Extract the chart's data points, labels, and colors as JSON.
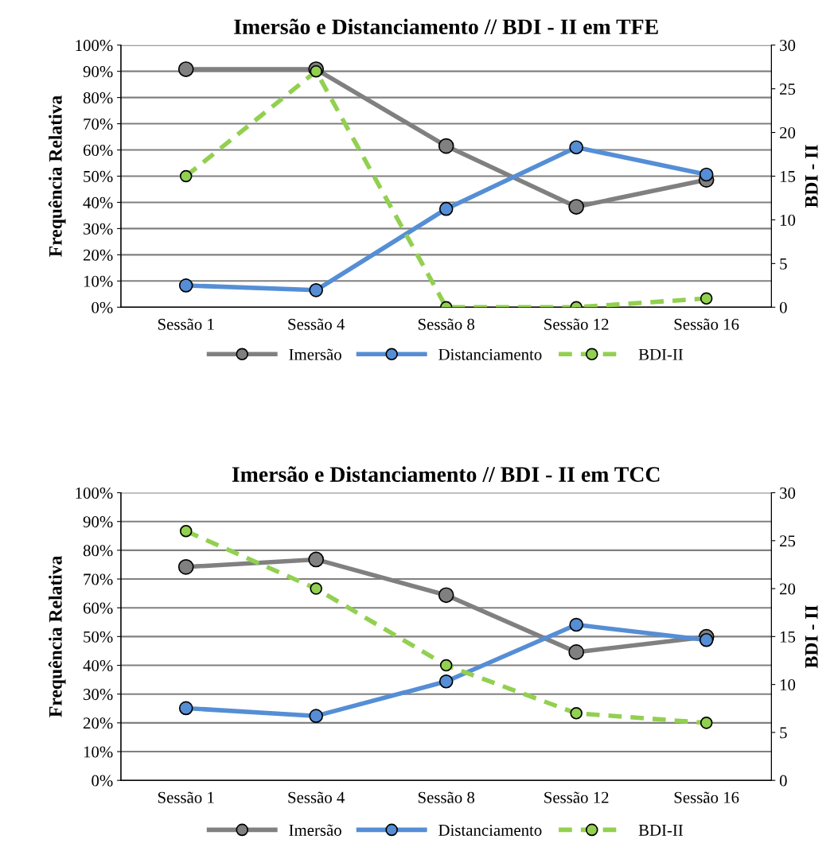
{
  "chart_data": [
    {
      "type": "line",
      "title": "Imersão e Distanciamento // BDI - II em TFE",
      "ylabel": "Frequência Relativa",
      "y2label": "BDI - II",
      "categories": [
        "Sessão 1",
        "Sessão 4",
        "Sessão 8",
        "Sessão 12",
        "Sessão 16"
      ],
      "series": [
        {
          "name": "Imersão",
          "color": "#808080",
          "values": [
            0.908,
            0.908,
            0.615,
            0.383,
            0.486
          ]
        },
        {
          "name": "Distanciamento",
          "color": "#558ed5",
          "values": [
            0.083,
            0.065,
            0.375,
            0.61,
            0.506
          ]
        },
        {
          "name": "BDI-II",
          "color": "#92d050",
          "values": [
            15,
            27,
            0,
            0,
            1
          ],
          "axis": "y2",
          "line_style": "dashed"
        }
      ],
      "ylim": [
        0,
        1
      ],
      "yticks": [
        {
          "value": 0,
          "label": "0%"
        },
        {
          "value": 0.1,
          "label": "10%"
        },
        {
          "value": 0.2,
          "label": "20%"
        },
        {
          "value": 0.3,
          "label": "30%"
        },
        {
          "value": 0.4,
          "label": "40%"
        },
        {
          "value": 0.5,
          "label": "50%"
        },
        {
          "value": 0.6,
          "label": "60%"
        },
        {
          "value": 0.7,
          "label": "70%"
        },
        {
          "value": 0.8,
          "label": "80%"
        },
        {
          "value": 0.9,
          "label": "90%"
        },
        {
          "value": 1,
          "label": "100%"
        }
      ],
      "y2lim": [
        0,
        30
      ],
      "y2ticks": [
        0,
        5,
        10,
        15,
        20,
        25,
        30
      ],
      "grid": "y",
      "legend": "bottom",
      "marker": "circle",
      "line_style": "solid"
    },
    {
      "type": "line",
      "title": "Imersão e Distanciamento // BDI - II em TCC",
      "ylabel": "Frequência Relativa",
      "y2label": "BDI - II",
      "categories": [
        "Sessão 1",
        "Sessão 4",
        "Sessão 8",
        "Sessão 12",
        "Sessão 16"
      ],
      "series": [
        {
          "name": "Imersão",
          "color": "#808080",
          "values": [
            0.742,
            0.768,
            0.644,
            0.446,
            0.499
          ]
        },
        {
          "name": "Distanciamento",
          "color": "#558ed5",
          "values": [
            0.251,
            0.224,
            0.344,
            0.541,
            0.488
          ]
        },
        {
          "name": "BDI-II",
          "color": "#92d050",
          "values": [
            26,
            20,
            12,
            7,
            6
          ],
          "axis": "y2",
          "line_style": "dashed"
        }
      ],
      "ylim": [
        0,
        1
      ],
      "yticks": [
        {
          "value": 0,
          "label": "0%"
        },
        {
          "value": 0.1,
          "label": "10%"
        },
        {
          "value": 0.2,
          "label": "20%"
        },
        {
          "value": 0.3,
          "label": "30%"
        },
        {
          "value": 0.4,
          "label": "40%"
        },
        {
          "value": 0.5,
          "label": "50%"
        },
        {
          "value": 0.6,
          "label": "60%"
        },
        {
          "value": 0.7,
          "label": "70%"
        },
        {
          "value": 0.8,
          "label": "80%"
        },
        {
          "value": 0.9,
          "label": "90%"
        },
        {
          "value": 1,
          "label": "100%"
        }
      ],
      "y2lim": [
        0,
        30
      ],
      "y2ticks": [
        0,
        5,
        10,
        15,
        20,
        25,
        30
      ],
      "grid": "y",
      "legend": "bottom",
      "marker": "circle",
      "line_style": "solid"
    }
  ]
}
